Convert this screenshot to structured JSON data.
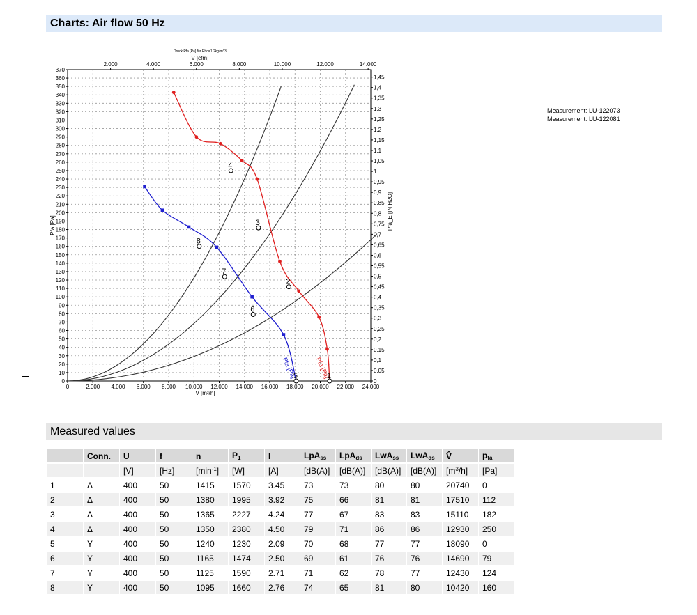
{
  "header": {
    "title": "Charts: Air flow 50 Hz"
  },
  "measured": {
    "title": "Measured values"
  },
  "legend": [
    "Measurement: LU-122073",
    "Measurement: LU-122081"
  ],
  "chart_data": {
    "type": "line",
    "subtitle": "Druck Pfa [Pa] für Rho=1,2kg/m^3",
    "xlabel_bottom": "V [m³/h]",
    "xlabel_top": "V [cfm]",
    "ylabel_left": "Pfa [Pa]",
    "ylabel_right": "Pfa_E [IN H2O]",
    "xlim": [
      0,
      24000
    ],
    "ylim": [
      0,
      370
    ],
    "grid": true,
    "x_ticks_bottom": [
      "0",
      "2.000",
      "4.000",
      "6.000",
      "8.000",
      "10.000",
      "12.000",
      "14.000",
      "16.000",
      "18.000",
      "20.000",
      "22.000",
      "24.000"
    ],
    "x_ticks_top": [
      "2.000",
      "4.000",
      "6.000",
      "8.000",
      "10.000",
      "12.000",
      "14.000"
    ],
    "y_ticks_left": [
      "0",
      "10",
      "20",
      "30",
      "40",
      "50",
      "60",
      "70",
      "80",
      "90",
      "100",
      "110",
      "120",
      "130",
      "140",
      "150",
      "160",
      "170",
      "180",
      "190",
      "200",
      "210",
      "220",
      "230",
      "240",
      "250",
      "260",
      "270",
      "280",
      "290",
      "300",
      "310",
      "320",
      "330",
      "340",
      "350",
      "360",
      "370"
    ],
    "y_ticks_right": [
      "0",
      "0,05",
      "0,1",
      "0,15",
      "0,2",
      "0,25",
      "0,3",
      "0,35",
      "0,4",
      "0,45",
      "0,5",
      "0,55",
      "0,6",
      "0,65",
      "0,7",
      "0,75",
      "0,8",
      "0,85",
      "0,9",
      "0,95",
      "1",
      "1,05",
      "1,1",
      "1,15",
      "1,2",
      "1,25",
      "1,3",
      "1,35",
      "1,4",
      "1,45"
    ],
    "series": [
      {
        "name": "Pfa [Pa]",
        "color": "#e02020",
        "x": [
          8400,
          10200,
          12100,
          13800,
          15000,
          16800,
          18300,
          19900,
          20550
        ],
        "y": [
          343,
          290,
          282,
          262,
          240,
          142,
          107,
          76,
          38
        ],
        "curve_end": [
          20740,
          0
        ]
      },
      {
        "name": "Pfa [Pa]",
        "color": "#2020d0",
        "x": [
          6100,
          7500,
          9600,
          11800,
          14600,
          17100
        ],
        "y": [
          231,
          203,
          183,
          159,
          100,
          55
        ],
        "curve_end": [
          18090,
          0
        ]
      }
    ],
    "system_curves": [
      {
        "x": [
          0,
          16900
        ],
        "y": [
          0,
          350
        ]
      },
      {
        "x": [
          0,
          22700
        ],
        "y": [
          0,
          352
        ]
      },
      {
        "x": [
          0,
          24500
        ],
        "y": [
          0,
          175
        ]
      }
    ],
    "operating_points": [
      {
        "label": "1",
        "x": 20740,
        "y": 0
      },
      {
        "label": "2",
        "x": 17510,
        "y": 112
      },
      {
        "label": "3",
        "x": 15110,
        "y": 182
      },
      {
        "label": "4",
        "x": 12930,
        "y": 250
      },
      {
        "label": "5",
        "x": 18090,
        "y": 0
      },
      {
        "label": "6",
        "x": 14690,
        "y": 79
      },
      {
        "label": "7",
        "x": 12430,
        "y": 124
      },
      {
        "label": "8",
        "x": 10420,
        "y": 160
      }
    ]
  },
  "table": {
    "headers": [
      "",
      "Conn.",
      "U",
      "f",
      "n",
      "P1",
      "I",
      "LpAss",
      "LpAds",
      "LwAss",
      "LwAds",
      "V̂",
      "pfa"
    ],
    "units": [
      "",
      "",
      "[V]",
      "[Hz]",
      "[min-1]",
      "[W]",
      "[A]",
      "[dB(A)]",
      "[dB(A)]",
      "[dB(A)]",
      "[dB(A)]",
      "[m3/h]",
      "[Pa]"
    ],
    "rows": [
      [
        "1",
        "Δ",
        "400",
        "50",
        "1415",
        "1570",
        "3.45",
        "73",
        "73",
        "80",
        "80",
        "20740",
        "0"
      ],
      [
        "2",
        "Δ",
        "400",
        "50",
        "1380",
        "1995",
        "3.92",
        "75",
        "66",
        "81",
        "81",
        "17510",
        "112"
      ],
      [
        "3",
        "Δ",
        "400",
        "50",
        "1365",
        "2227",
        "4.24",
        "77",
        "67",
        "83",
        "83",
        "15110",
        "182"
      ],
      [
        "4",
        "Δ",
        "400",
        "50",
        "1350",
        "2380",
        "4.50",
        "79",
        "71",
        "86",
        "86",
        "12930",
        "250"
      ],
      [
        "5",
        "Y",
        "400",
        "50",
        "1240",
        "1230",
        "2.09",
        "70",
        "68",
        "77",
        "77",
        "18090",
        "0"
      ],
      [
        "6",
        "Y",
        "400",
        "50",
        "1165",
        "1474",
        "2.50",
        "69",
        "61",
        "76",
        "76",
        "14690",
        "79"
      ],
      [
        "7",
        "Y",
        "400",
        "50",
        "1125",
        "1590",
        "2.71",
        "71",
        "62",
        "78",
        "77",
        "12430",
        "124"
      ],
      [
        "8",
        "Y",
        "400",
        "50",
        "1095",
        "1660",
        "2.76",
        "74",
        "65",
        "81",
        "80",
        "10420",
        "160"
      ]
    ]
  }
}
